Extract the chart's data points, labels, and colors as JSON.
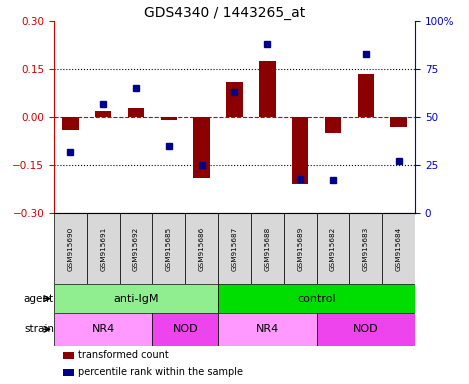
{
  "title": "GDS4340 / 1443265_at",
  "samples": [
    "GSM915690",
    "GSM915691",
    "GSM915692",
    "GSM915685",
    "GSM915686",
    "GSM915687",
    "GSM915688",
    "GSM915689",
    "GSM915682",
    "GSM915683",
    "GSM915684"
  ],
  "bar_values": [
    -0.04,
    0.02,
    0.03,
    -0.01,
    -0.19,
    0.11,
    0.175,
    -0.21,
    -0.05,
    0.135,
    -0.03
  ],
  "dot_values": [
    32,
    57,
    65,
    35,
    25,
    63,
    88,
    18,
    17,
    83,
    27
  ],
  "ylim_left": [
    -0.3,
    0.3
  ],
  "ylim_right": [
    0,
    100
  ],
  "yticks_left": [
    -0.3,
    -0.15,
    0.0,
    0.15,
    0.3
  ],
  "yticks_right": [
    0,
    25,
    50,
    75,
    100
  ],
  "bar_color": "#8B0000",
  "dot_color": "#00008B",
  "hline_color": "#CC0000",
  "grid_color": "black",
  "agent_groups": [
    {
      "label": "anti-IgM",
      "start": 0,
      "end": 5,
      "color": "#90EE90"
    },
    {
      "label": "control",
      "start": 5,
      "end": 11,
      "color": "#00DD00"
    }
  ],
  "strain_groups": [
    {
      "label": "NR4",
      "start": 0,
      "end": 3,
      "color": "#FF99FF"
    },
    {
      "label": "NOD",
      "start": 3,
      "end": 5,
      "color": "#EE44EE"
    },
    {
      "label": "NR4",
      "start": 5,
      "end": 8,
      "color": "#FF99FF"
    },
    {
      "label": "NOD",
      "start": 8,
      "end": 11,
      "color": "#EE44EE"
    }
  ],
  "legend_items": [
    {
      "label": "transformed count",
      "color": "#8B0000"
    },
    {
      "label": "percentile rank within the sample",
      "color": "#00008B"
    }
  ],
  "left_color": "#CC0000",
  "right_color": "#0000CC",
  "title_fontsize": 10
}
